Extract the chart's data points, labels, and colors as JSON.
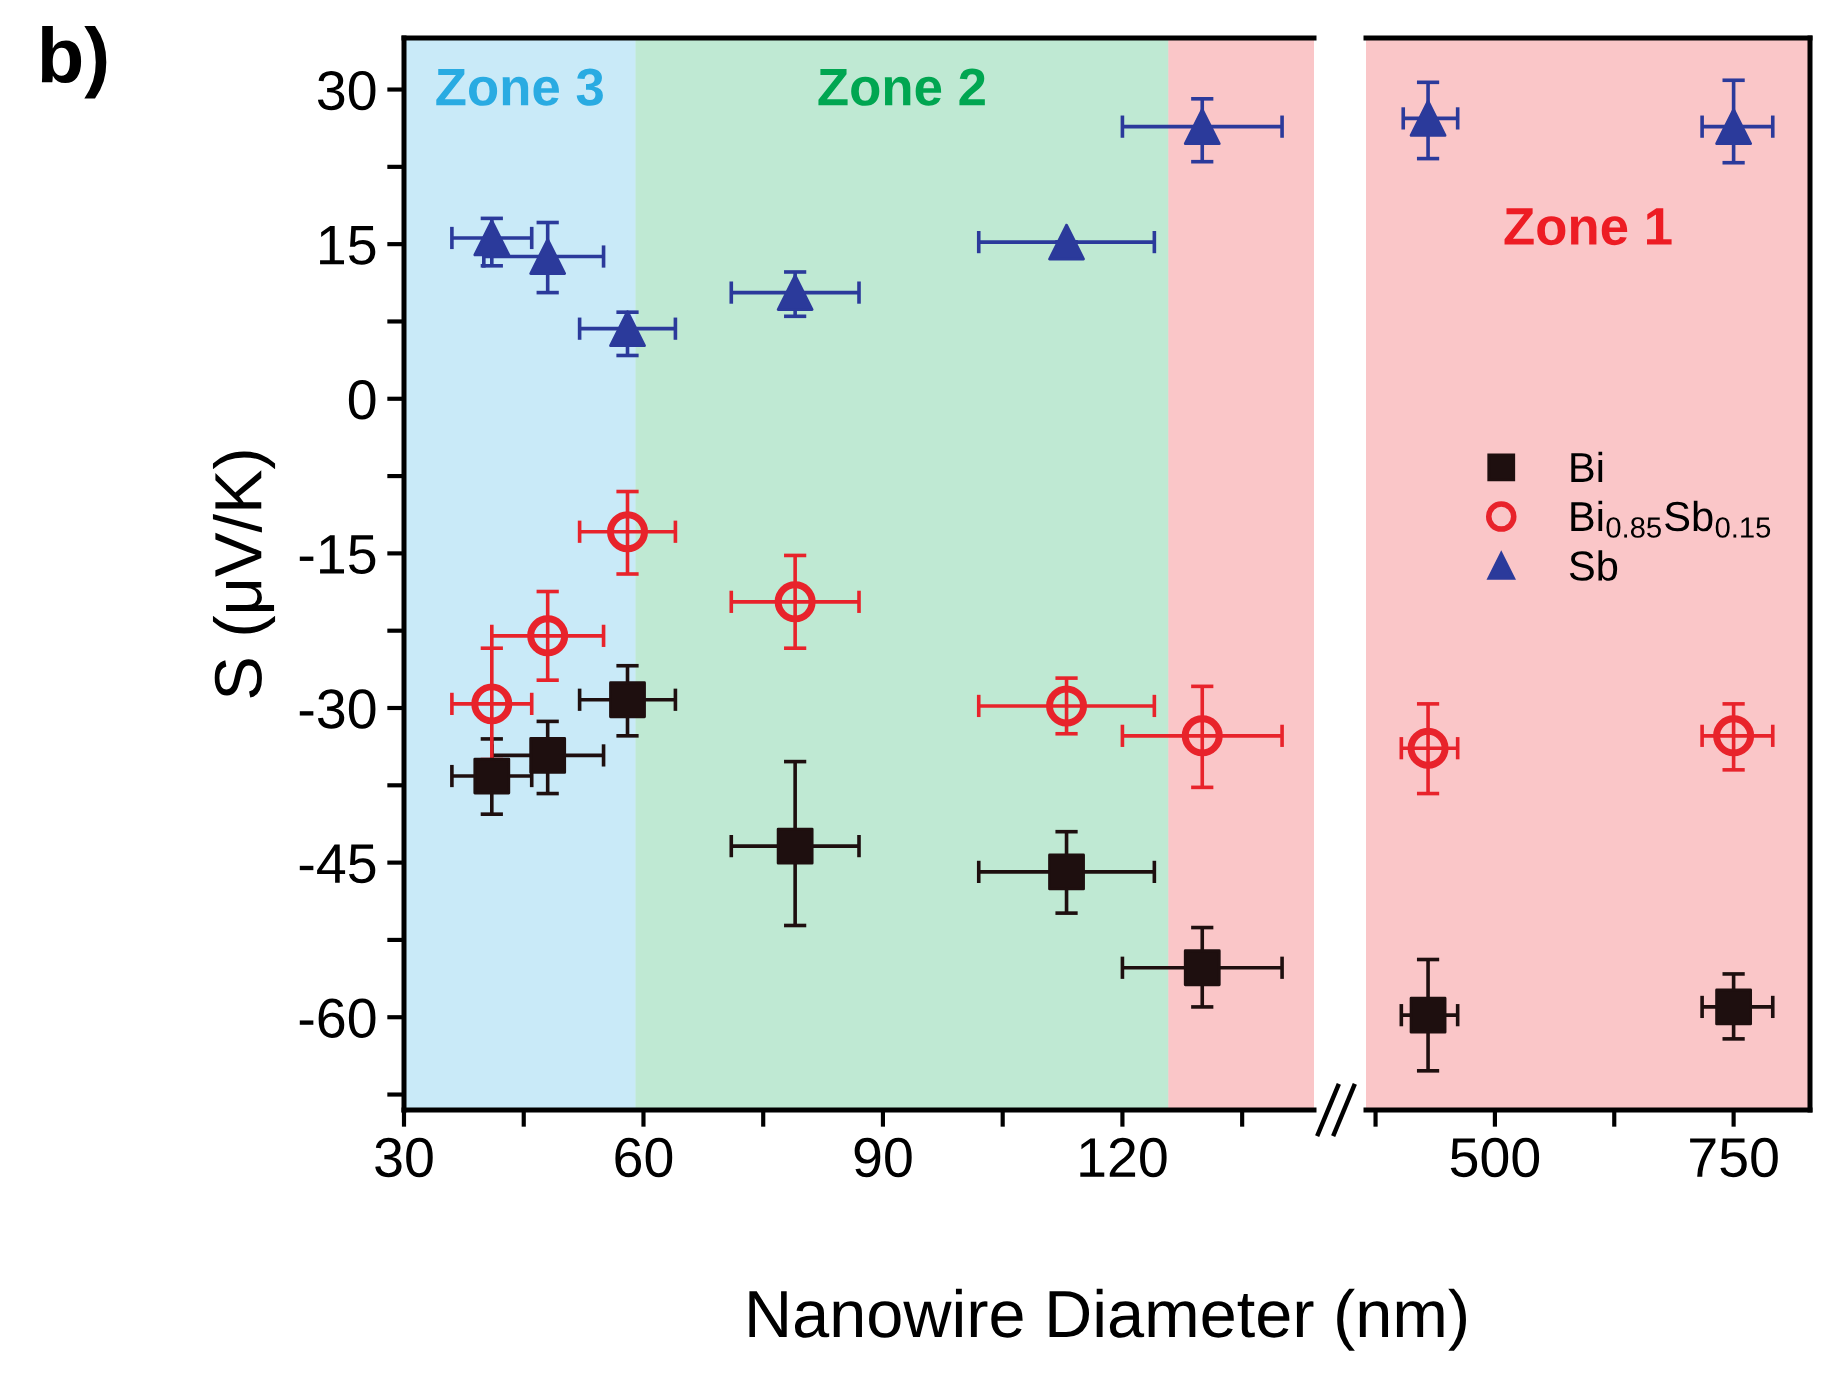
{
  "chart_data": [
    {
      "type": "scatter",
      "ylabel": "S (μV/K)",
      "xlabel": "Nanowire Diameter (nm)",
      "annotations": [
        "b)"
      ],
      "xlim": [
        30,
        144
      ],
      "xticks": [
        30,
        {
          "value": 45,
          "label": null
        },
        60,
        {
          "value": 75,
          "label": null
        },
        90,
        {
          "value": 105,
          "label": null
        },
        120,
        {
          "value": 135,
          "label": null
        }
      ],
      "ylim": [
        -69,
        35
      ],
      "yticks": [
        {
          "value": 22.5,
          "label": null
        },
        30,
        15,
        {
          "value": 7.5,
          "label": null
        },
        0,
        {
          "value": -7.5,
          "label": null
        },
        -15,
        {
          "value": -22.5,
          "label": null
        },
        -30,
        {
          "value": -37.5,
          "label": null
        },
        -45,
        {
          "value": -52.5,
          "label": null
        },
        -60,
        {
          "value": -67.5,
          "label": null
        }
      ],
      "grid": false,
      "bands": [
        {
          "axis": "x",
          "from": 30,
          "to": 59,
          "label": "Zone 3",
          "color": "#29abe2"
        },
        {
          "axis": "x",
          "from": 59,
          "to": 125.75,
          "label": "Zone 2",
          "color": "#00a651"
        },
        {
          "axis": "x",
          "from": 125.75,
          "to": 144,
          "label": null,
          "color": "#ed1c24"
        }
      ],
      "series": [
        {
          "color": "#1e0f0f",
          "marker": "square",
          "x": [
            41,
            48,
            58,
            79,
            113,
            130
          ],
          "values": [
            -36.6,
            -34.6,
            -29.2,
            -43.4,
            -45.9,
            -55.2
          ],
          "errors": [
            [
              -40.3,
              -33
            ],
            [
              -38.3,
              -31.3
            ],
            [
              -32.7,
              -25.9
            ],
            [
              -51.1,
              -35.2
            ],
            [
              -49.9,
              -42
            ],
            [
              -59,
              -51.3
            ]
          ],
          "xerrors": [
            [
              36,
              46
            ],
            [
              41,
              55
            ],
            [
              52,
              64
            ],
            [
              71,
              87
            ],
            [
              102,
              124
            ],
            [
              120,
              140
            ]
          ]
        },
        {
          "color": "#e8232b",
          "marker": "circle",
          "x": [
            41,
            48,
            58,
            79,
            113,
            130
          ],
          "values": [
            -29.6,
            -23,
            -12.9,
            -19.7,
            -29.8,
            -32.7
          ],
          "errors": [
            [
              -35,
              -24.2
            ],
            [
              -27.3,
              -18.7
            ],
            [
              -17,
              -9
            ],
            [
              -24.2,
              -15.2
            ],
            [
              -32.5,
              -27.1
            ],
            [
              -37.7,
              -27.9
            ]
          ],
          "xerrors": [
            [
              36,
              46
            ],
            [
              41,
              55
            ],
            [
              52,
              64
            ],
            [
              71,
              87
            ],
            [
              102,
              124
            ],
            [
              120,
              140
            ]
          ]
        },
        {
          "color": "#2b3a9b",
          "marker": "triangle",
          "x": [
            41,
            48,
            58,
            79,
            113,
            130
          ],
          "values": [
            15.6,
            13.8,
            6.8,
            10.3,
            15.2,
            26.4
          ],
          "errors": [
            [
              12.9,
              17.5
            ],
            [
              10.3,
              17.1
            ],
            [
              4.2,
              8.4
            ],
            [
              8,
              12.3
            ],
            null,
            [
              23,
              29.1
            ]
          ],
          "xerrors": [
            [
              36,
              46
            ],
            [
              40,
              55
            ],
            [
              52,
              64
            ],
            [
              71,
              87
            ],
            [
              102,
              124
            ],
            [
              120,
              140
            ]
          ]
        }
      ]
    },
    {
      "type": "scatter",
      "tick_labels": "x",
      "xlim": [
        365,
        830
      ],
      "xticks": [
        {
          "value": 375,
          "label": null
        },
        500,
        {
          "value": 625,
          "label": null
        },
        750
      ],
      "ylim": [
        -69,
        35
      ],
      "yticks": [
        30,
        15,
        0,
        -15,
        -30,
        -45,
        -60
      ],
      "grid": false,
      "legend": "right",
      "bands": [
        {
          "axis": "x",
          "from": 365,
          "to": 830,
          "label": "Zone 1",
          "color": "#ed1c24"
        }
      ],
      "series": [
        {
          "name": "Bi",
          "color": "#1e0f0f",
          "marker": "square",
          "x": [
            430,
            750
          ],
          "values": [
            -59.8,
            -59
          ],
          "errors": [
            [
              -65.2,
              -54.4
            ],
            [
              -62.1,
              -55.8
            ]
          ],
          "xerrors": [
            [
              402,
              461
            ],
            [
              717,
              791
            ]
          ]
        },
        {
          "name": "Bi$_{0.85}$Sb$_{0.15}$",
          "color": "#e8232b",
          "marker": "circle",
          "x": [
            430,
            750
          ],
          "values": [
            -33.9,
            -32.7
          ],
          "errors": [
            [
              -38.3,
              -29.6
            ],
            [
              -36,
              -29.6
            ]
          ],
          "xerrors": [
            [
              402,
              461
            ],
            [
              717,
              791
            ]
          ]
        },
        {
          "name": "Sb",
          "color": "#2b3a9b",
          "marker": "triangle",
          "x": [
            430,
            750
          ],
          "values": [
            27.2,
            26.4
          ],
          "errors": [
            [
              23.3,
              30.7
            ],
            [
              22.9,
              30.9
            ]
          ],
          "xerrors": [
            [
              404,
              461
            ],
            [
              717,
              791
            ]
          ]
        }
      ]
    }
  ]
}
